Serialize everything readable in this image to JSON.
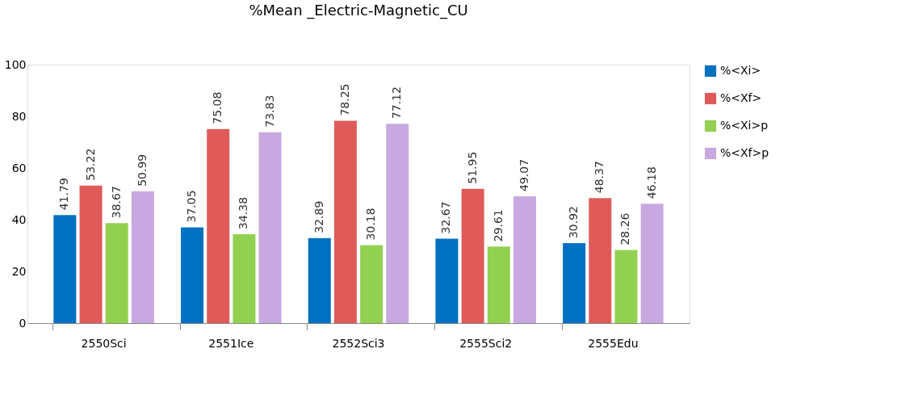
{
  "chart_data": {
    "type": "bar",
    "title": "%Mean _Electric-Magnetic_CU",
    "categories": [
      "2550Sci",
      "2551Ice",
      "2552Sci3",
      "2555Sci2",
      "2555Edu"
    ],
    "series": [
      {
        "name": "%<Xi>",
        "color": "#0070c0",
        "values": [
          41.79,
          37.05,
          32.89,
          32.67,
          30.92
        ]
      },
      {
        "name": "%<Xf>",
        "color": "#e05a5a",
        "values": [
          53.22,
          75.08,
          78.25,
          51.95,
          48.37
        ]
      },
      {
        "name": "%<Xi>p",
        "color": "#92d050",
        "values": [
          38.67,
          34.38,
          30.18,
          29.61,
          28.26
        ]
      },
      {
        "name": "%<Xf>p",
        "color": "#c8a8e0",
        "values": [
          50.99,
          73.83,
          77.12,
          49.07,
          46.18
        ]
      }
    ],
    "ylim": [
      0,
      100
    ],
    "yticks": [
      0,
      20,
      40,
      60,
      80,
      100
    ],
    "grid": false,
    "legend": "right",
    "data_labels": true
  }
}
